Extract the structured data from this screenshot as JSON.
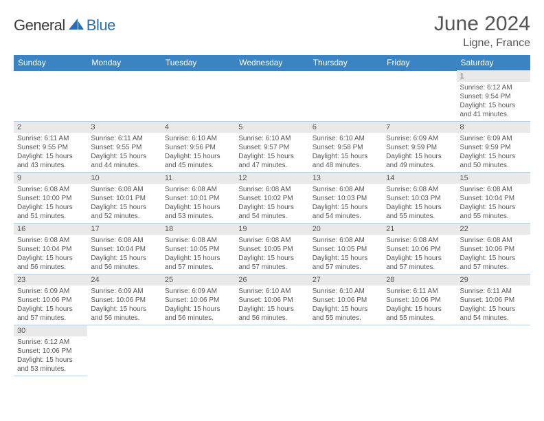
{
  "brand": {
    "part1": "General",
    "part2": "Blue"
  },
  "title": "June 2024",
  "location": "Ligne, France",
  "colors": {
    "header_bg": "#3b84c4",
    "header_text": "#ffffff",
    "daynum_bg": "#e9e9ea",
    "text": "#555555",
    "border": "#b8cde0",
    "brand_gray": "#3a3a3a",
    "brand_blue": "#2a6db5"
  },
  "weekdays": [
    "Sunday",
    "Monday",
    "Tuesday",
    "Wednesday",
    "Thursday",
    "Friday",
    "Saturday"
  ],
  "weeks": [
    [
      null,
      null,
      null,
      null,
      null,
      null,
      {
        "n": "1",
        "sr": "Sunrise: 6:12 AM",
        "ss": "Sunset: 9:54 PM",
        "d1": "Daylight: 15 hours",
        "d2": "and 41 minutes."
      }
    ],
    [
      {
        "n": "2",
        "sr": "Sunrise: 6:11 AM",
        "ss": "Sunset: 9:55 PM",
        "d1": "Daylight: 15 hours",
        "d2": "and 43 minutes."
      },
      {
        "n": "3",
        "sr": "Sunrise: 6:11 AM",
        "ss": "Sunset: 9:55 PM",
        "d1": "Daylight: 15 hours",
        "d2": "and 44 minutes."
      },
      {
        "n": "4",
        "sr": "Sunrise: 6:10 AM",
        "ss": "Sunset: 9:56 PM",
        "d1": "Daylight: 15 hours",
        "d2": "and 45 minutes."
      },
      {
        "n": "5",
        "sr": "Sunrise: 6:10 AM",
        "ss": "Sunset: 9:57 PM",
        "d1": "Daylight: 15 hours",
        "d2": "and 47 minutes."
      },
      {
        "n": "6",
        "sr": "Sunrise: 6:10 AM",
        "ss": "Sunset: 9:58 PM",
        "d1": "Daylight: 15 hours",
        "d2": "and 48 minutes."
      },
      {
        "n": "7",
        "sr": "Sunrise: 6:09 AM",
        "ss": "Sunset: 9:59 PM",
        "d1": "Daylight: 15 hours",
        "d2": "and 49 minutes."
      },
      {
        "n": "8",
        "sr": "Sunrise: 6:09 AM",
        "ss": "Sunset: 9:59 PM",
        "d1": "Daylight: 15 hours",
        "d2": "and 50 minutes."
      }
    ],
    [
      {
        "n": "9",
        "sr": "Sunrise: 6:08 AM",
        "ss": "Sunset: 10:00 PM",
        "d1": "Daylight: 15 hours",
        "d2": "and 51 minutes."
      },
      {
        "n": "10",
        "sr": "Sunrise: 6:08 AM",
        "ss": "Sunset: 10:01 PM",
        "d1": "Daylight: 15 hours",
        "d2": "and 52 minutes."
      },
      {
        "n": "11",
        "sr": "Sunrise: 6:08 AM",
        "ss": "Sunset: 10:01 PM",
        "d1": "Daylight: 15 hours",
        "d2": "and 53 minutes."
      },
      {
        "n": "12",
        "sr": "Sunrise: 6:08 AM",
        "ss": "Sunset: 10:02 PM",
        "d1": "Daylight: 15 hours",
        "d2": "and 54 minutes."
      },
      {
        "n": "13",
        "sr": "Sunrise: 6:08 AM",
        "ss": "Sunset: 10:03 PM",
        "d1": "Daylight: 15 hours",
        "d2": "and 54 minutes."
      },
      {
        "n": "14",
        "sr": "Sunrise: 6:08 AM",
        "ss": "Sunset: 10:03 PM",
        "d1": "Daylight: 15 hours",
        "d2": "and 55 minutes."
      },
      {
        "n": "15",
        "sr": "Sunrise: 6:08 AM",
        "ss": "Sunset: 10:04 PM",
        "d1": "Daylight: 15 hours",
        "d2": "and 55 minutes."
      }
    ],
    [
      {
        "n": "16",
        "sr": "Sunrise: 6:08 AM",
        "ss": "Sunset: 10:04 PM",
        "d1": "Daylight: 15 hours",
        "d2": "and 56 minutes."
      },
      {
        "n": "17",
        "sr": "Sunrise: 6:08 AM",
        "ss": "Sunset: 10:04 PM",
        "d1": "Daylight: 15 hours",
        "d2": "and 56 minutes."
      },
      {
        "n": "18",
        "sr": "Sunrise: 6:08 AM",
        "ss": "Sunset: 10:05 PM",
        "d1": "Daylight: 15 hours",
        "d2": "and 57 minutes."
      },
      {
        "n": "19",
        "sr": "Sunrise: 6:08 AM",
        "ss": "Sunset: 10:05 PM",
        "d1": "Daylight: 15 hours",
        "d2": "and 57 minutes."
      },
      {
        "n": "20",
        "sr": "Sunrise: 6:08 AM",
        "ss": "Sunset: 10:05 PM",
        "d1": "Daylight: 15 hours",
        "d2": "and 57 minutes."
      },
      {
        "n": "21",
        "sr": "Sunrise: 6:08 AM",
        "ss": "Sunset: 10:06 PM",
        "d1": "Daylight: 15 hours",
        "d2": "and 57 minutes."
      },
      {
        "n": "22",
        "sr": "Sunrise: 6:08 AM",
        "ss": "Sunset: 10:06 PM",
        "d1": "Daylight: 15 hours",
        "d2": "and 57 minutes."
      }
    ],
    [
      {
        "n": "23",
        "sr": "Sunrise: 6:09 AM",
        "ss": "Sunset: 10:06 PM",
        "d1": "Daylight: 15 hours",
        "d2": "and 57 minutes."
      },
      {
        "n": "24",
        "sr": "Sunrise: 6:09 AM",
        "ss": "Sunset: 10:06 PM",
        "d1": "Daylight: 15 hours",
        "d2": "and 56 minutes."
      },
      {
        "n": "25",
        "sr": "Sunrise: 6:09 AM",
        "ss": "Sunset: 10:06 PM",
        "d1": "Daylight: 15 hours",
        "d2": "and 56 minutes."
      },
      {
        "n": "26",
        "sr": "Sunrise: 6:10 AM",
        "ss": "Sunset: 10:06 PM",
        "d1": "Daylight: 15 hours",
        "d2": "and 56 minutes."
      },
      {
        "n": "27",
        "sr": "Sunrise: 6:10 AM",
        "ss": "Sunset: 10:06 PM",
        "d1": "Daylight: 15 hours",
        "d2": "and 55 minutes."
      },
      {
        "n": "28",
        "sr": "Sunrise: 6:11 AM",
        "ss": "Sunset: 10:06 PM",
        "d1": "Daylight: 15 hours",
        "d2": "and 55 minutes."
      },
      {
        "n": "29",
        "sr": "Sunrise: 6:11 AM",
        "ss": "Sunset: 10:06 PM",
        "d1": "Daylight: 15 hours",
        "d2": "and 54 minutes."
      }
    ],
    [
      {
        "n": "30",
        "sr": "Sunrise: 6:12 AM",
        "ss": "Sunset: 10:06 PM",
        "d1": "Daylight: 15 hours",
        "d2": "and 53 minutes."
      },
      null,
      null,
      null,
      null,
      null,
      null
    ]
  ]
}
